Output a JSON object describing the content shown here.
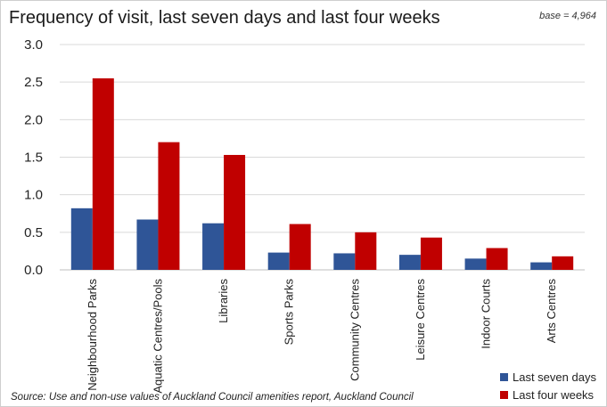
{
  "chart_data": {
    "type": "bar",
    "title": "Frequency of visit, last seven days and last four weeks",
    "note": "base = 4,964",
    "categories": [
      "Neighbourhood Parks",
      "Aquatic Centres/Pools",
      "Libraries",
      "Sports Parks",
      "Community Centres",
      "Leisure Centres",
      "Indoor Courts",
      "Arts Centres"
    ],
    "series": [
      {
        "name": "Last seven days",
        "color": "#2f5597",
        "values": [
          0.82,
          0.67,
          0.62,
          0.23,
          0.22,
          0.2,
          0.15,
          0.1
        ]
      },
      {
        "name": "Last four weeks",
        "color": "#c00000",
        "values": [
          2.55,
          1.7,
          1.53,
          0.61,
          0.5,
          0.43,
          0.29,
          0.18
        ]
      }
    ],
    "ylim": [
      0,
      3.0
    ],
    "yticks": [
      "0.0",
      "0.5",
      "1.0",
      "1.5",
      "2.0",
      "2.5",
      "3.0"
    ],
    "grid": true,
    "legend_position": "bottom-right",
    "source": "Source: Use and non-use values of Auckland Council amenities report, Auckland Council"
  }
}
